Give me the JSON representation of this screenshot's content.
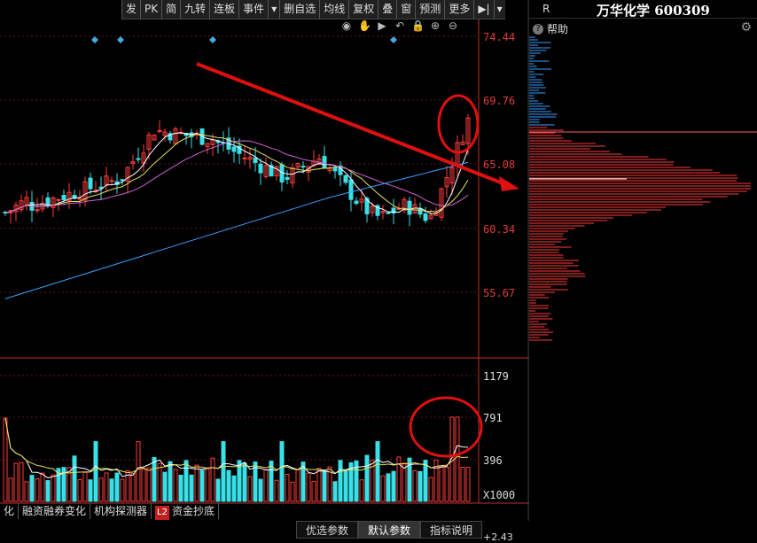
{
  "toolbar": {
    "items": [
      "发",
      "PK",
      "简",
      "九转",
      "连板",
      "事件",
      "▾",
      "删自选",
      "均线",
      "复权",
      "叠",
      "窗",
      "预测",
      "更多",
      "▶|",
      "▾"
    ]
  },
  "chart_icons": [
    "eye-icon",
    "hand-icon",
    "play-icon",
    "undo-icon",
    "lock-icon",
    "plus-icon",
    "minus-icon"
  ],
  "price_axis": [
    "74.44",
    "69.76",
    "65.08",
    "60.34",
    "55.67"
  ],
  "volume_axis": [
    "1179",
    "791",
    "396",
    "X1000"
  ],
  "bottom_value": "+2.43",
  "right_panel": {
    "marker": "R",
    "title": "万华化学 600309",
    "help_label": "帮助"
  },
  "tabs": [
    "化",
    "融资融券变化",
    "机构探测器",
    "L2",
    "资金抄底"
  ],
  "buttons": [
    "优选参数",
    "默认参数",
    "指标说明"
  ],
  "colors": {
    "up": "#ff3b3b",
    "down": "#38e0e8",
    "ma_white": "#ffffff",
    "ma_yellow": "#e8e060",
    "ma_pink": "#d060d0",
    "ma_blue": "#3aa0ff",
    "trend": "#e01010"
  }
}
